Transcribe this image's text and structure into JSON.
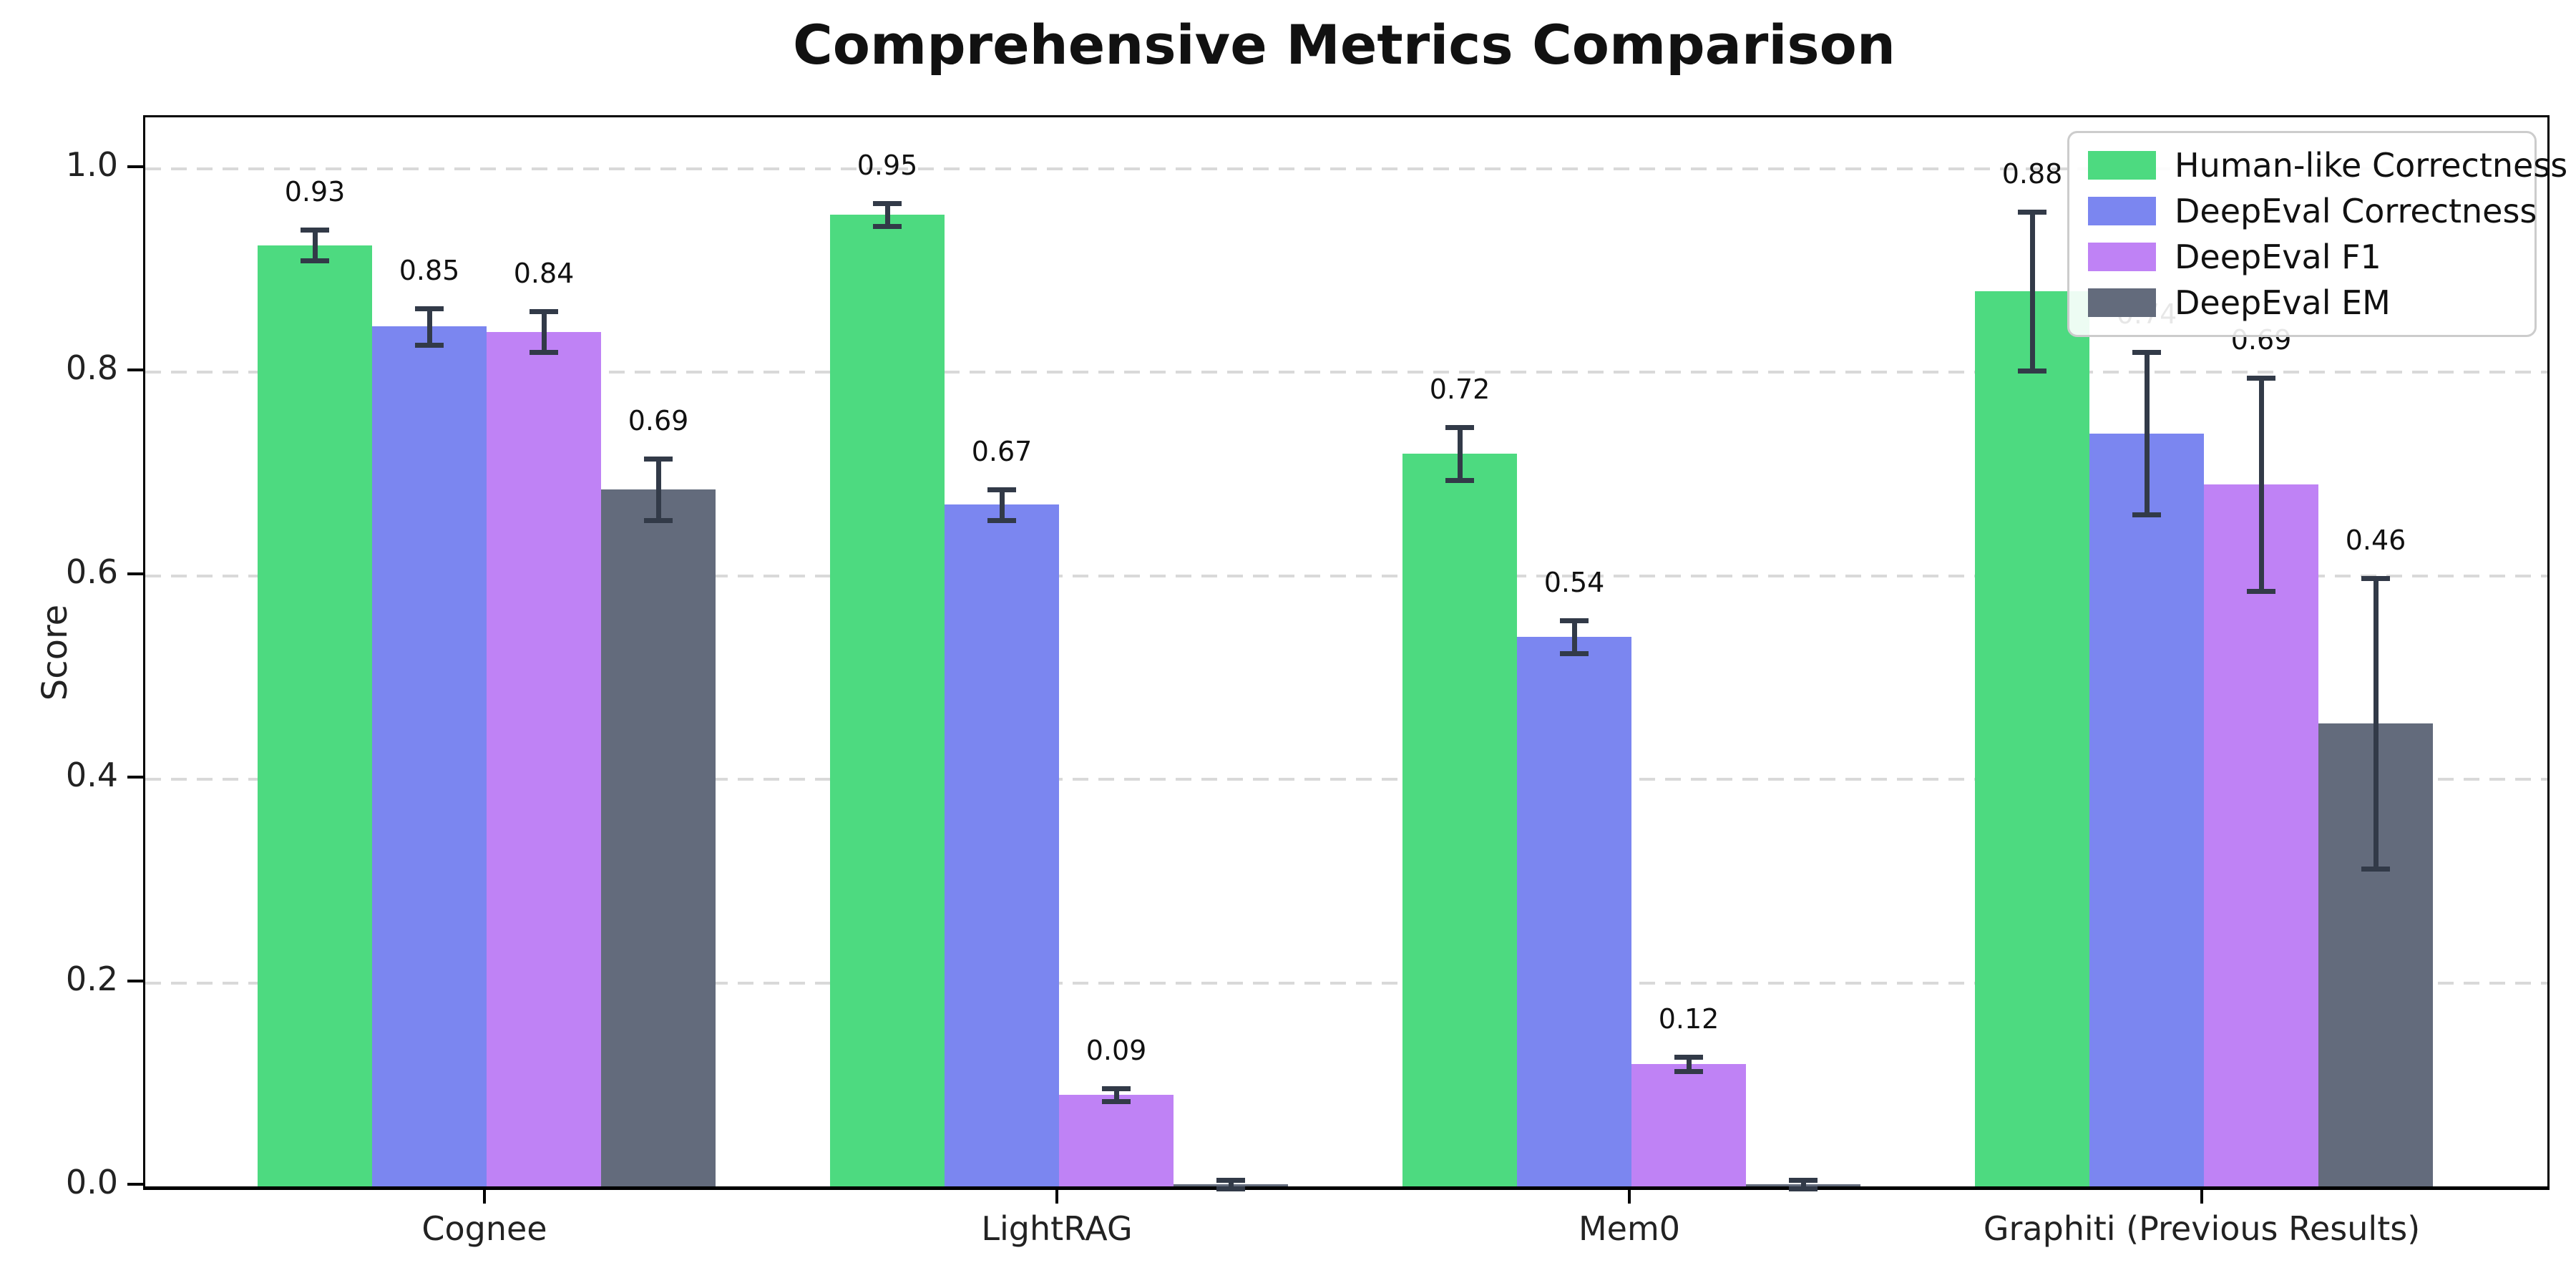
{
  "title": "Comprehensive Metrics Comparison",
  "axes": {
    "ylabel": "Score",
    "ytick_labels": [
      "0.0",
      "0.2",
      "0.4",
      "0.6",
      "0.8",
      "1.0"
    ],
    "ylim": [
      0,
      1.051
    ]
  },
  "legend": {
    "position": "upper-right",
    "entries": [
      "Human-like Correctness",
      "DeepEval Correctness",
      "DeepEval F1",
      "DeepEval EM"
    ]
  },
  "colors": {
    "error_bar": "#323a48",
    "gridline": "#d9d9d9",
    "axis": "#000000"
  },
  "chart_data": {
    "type": "bar",
    "title": "Comprehensive Metrics Comparison",
    "xlabel": "",
    "ylabel": "Score",
    "ylim": [
      0,
      1.051
    ],
    "grid": "horizontal-dashed",
    "legend_position": "upper-right",
    "categories": [
      "Cognee",
      "LightRAG",
      "Mem0",
      "Graphiti (Previous Results)"
    ],
    "series": [
      {
        "name": "Human-like Correctness",
        "color": "#4dda80",
        "values": [
          0.925,
          0.955,
          0.72,
          0.88
        ],
        "errors": [
          0.015,
          0.011,
          0.026,
          0.078
        ],
        "labels": [
          "0.93",
          "0.95",
          "0.72",
          "0.88"
        ]
      },
      {
        "name": "DeepEval Correctness",
        "color": "#7b86f0",
        "values": [
          0.845,
          0.67,
          0.54,
          0.74
        ],
        "errors": [
          0.018,
          0.015,
          0.016,
          0.08
        ],
        "labels": [
          "0.85",
          "0.67",
          "0.54",
          "0.74"
        ]
      },
      {
        "name": "DeepEval F1",
        "color": "#bf82f5",
        "values": [
          0.84,
          0.09,
          0.12,
          0.69
        ],
        "errors": [
          0.02,
          0.006,
          0.007,
          0.105
        ],
        "labels": [
          "0.84",
          "0.09",
          "0.12",
          "0.69"
        ]
      },
      {
        "name": "DeepEval EM",
        "color": "#636b7c",
        "values": [
          0.685,
          0.002,
          0.002,
          0.455
        ],
        "errors": [
          0.03,
          0.004,
          0.004,
          0.143
        ],
        "labels": [
          "0.69",
          "",
          "",
          "0.46"
        ]
      }
    ]
  }
}
